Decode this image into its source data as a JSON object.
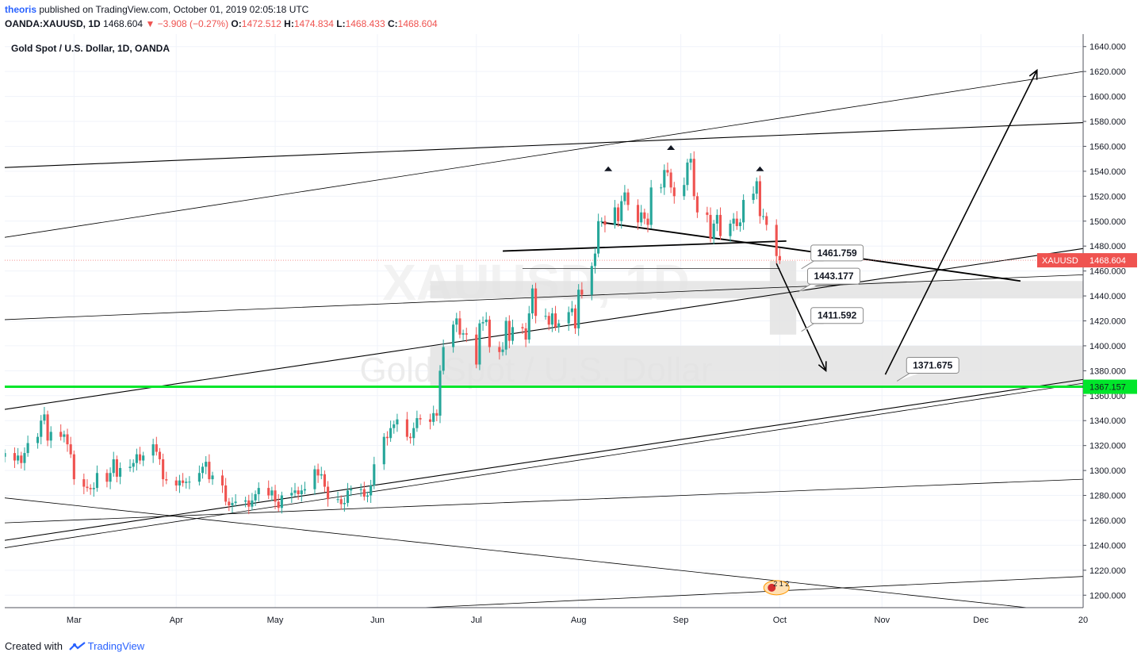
{
  "header": {
    "username": "theoris",
    "published_text": "published on TradingView.com, October 01, 2019 02:05:18 UTC"
  },
  "ohlc_line": {
    "symbol": "OANDA:XAUUSD, 1D",
    "last": "1468.604",
    "change": "−3.908 (−0.27%)",
    "o_label": "O:",
    "o": "1472.512",
    "h_label": "H:",
    "h": "1474.834",
    "l_label": "L:",
    "l": "1468.433",
    "c_label": "C:",
    "c": "1468.604"
  },
  "footer": {
    "created_with": "Created with",
    "brand": "TradingView"
  },
  "colors": {
    "up": "#26a69a",
    "down": "#ef5350",
    "support": "#00e62a",
    "band": "#e3e3e3",
    "price_tag": "#ef5350"
  },
  "chart_data": {
    "type": "candlestick",
    "title": "Gold Spot / U.S. Dollar, 1D, OANDA",
    "watermark_symbol": "XAUUSD, 1D",
    "watermark_name": "Gold Spot / U.S. Dollar",
    "yaxis": {
      "side": "right",
      "ylim": [
        1190,
        1650
      ],
      "ticks": [
        1640,
        1620,
        1600,
        1580,
        1560,
        1540,
        1520,
        1500,
        1480,
        1460,
        1440,
        1420,
        1400,
        1380,
        1360,
        1340,
        1320,
        1300,
        1280,
        1260,
        1240,
        1220,
        1200
      ],
      "tick_labels": [
        "1640.000",
        "1620.000",
        "1600.000",
        "1580.000",
        "1560.000",
        "1540.000",
        "1520.000",
        "1500.000",
        "1480.000",
        "1460.000",
        "1440.000",
        "1420.000",
        "1400.000",
        "1380.000",
        "1360.000",
        "1340.000",
        "1320.000",
        "1300.000",
        "1280.000",
        "1260.000",
        "1240.000",
        "1220.000",
        "1200.000"
      ]
    },
    "xaxis": {
      "range": [
        "2019-02-08",
        "2020-01-01"
      ],
      "ticks": [
        {
          "date": "2019-03-01",
          "label": "Mar"
        },
        {
          "date": "2019-04-01",
          "label": "Apr"
        },
        {
          "date": "2019-05-01",
          "label": "May"
        },
        {
          "date": "2019-06-01",
          "label": "Jun"
        },
        {
          "date": "2019-07-01",
          "label": "Jul"
        },
        {
          "date": "2019-08-01",
          "label": "Aug"
        },
        {
          "date": "2019-09-01",
          "label": "Sep"
        },
        {
          "date": "2019-10-01",
          "label": "Oct"
        },
        {
          "date": "2019-11-01",
          "label": "Nov"
        },
        {
          "date": "2019-12-01",
          "label": "Dec"
        },
        {
          "date": "2020-01-01",
          "label": "20"
        }
      ]
    },
    "grid": true,
    "price_close": [
      [
        "2019-02-08",
        1314
      ],
      [
        "2019-02-11",
        1308
      ],
      [
        "2019-02-12",
        1312
      ],
      [
        "2019-02-13",
        1306
      ],
      [
        "2019-02-14",
        1314
      ],
      [
        "2019-02-15",
        1322
      ],
      [
        "2019-02-18",
        1327
      ],
      [
        "2019-02-19",
        1340
      ],
      [
        "2019-02-20",
        1345
      ],
      [
        "2019-02-21",
        1324
      ],
      [
        "2019-02-22",
        1331
      ],
      [
        "2019-02-25",
        1327
      ],
      [
        "2019-02-26",
        1329
      ],
      [
        "2019-02-27",
        1321
      ],
      [
        "2019-02-28",
        1313
      ],
      [
        "2019-03-01",
        1293
      ],
      [
        "2019-03-04",
        1287
      ],
      [
        "2019-03-05",
        1286
      ],
      [
        "2019-03-06",
        1285
      ],
      [
        "2019-03-07",
        1286
      ],
      [
        "2019-03-08",
        1298
      ],
      [
        "2019-03-11",
        1291
      ],
      [
        "2019-03-12",
        1298
      ],
      [
        "2019-03-13",
        1309
      ],
      [
        "2019-03-14",
        1295
      ],
      [
        "2019-03-15",
        1302
      ],
      [
        "2019-03-18",
        1303
      ],
      [
        "2019-03-19",
        1306
      ],
      [
        "2019-03-20",
        1313
      ],
      [
        "2019-03-21",
        1308
      ],
      [
        "2019-03-22",
        1312
      ],
      [
        "2019-03-25",
        1321
      ],
      [
        "2019-03-26",
        1315
      ],
      [
        "2019-03-27",
        1309
      ],
      [
        "2019-03-28",
        1293
      ],
      [
        "2019-03-29",
        1292
      ],
      [
        "2019-04-01",
        1288
      ],
      [
        "2019-04-02",
        1292
      ],
      [
        "2019-04-03",
        1290
      ],
      [
        "2019-04-04",
        1291
      ],
      [
        "2019-04-05",
        1291
      ],
      [
        "2019-04-08",
        1298
      ],
      [
        "2019-04-09",
        1303
      ],
      [
        "2019-04-10",
        1307
      ],
      [
        "2019-04-11",
        1293
      ],
      [
        "2019-04-12",
        1296
      ],
      [
        "2019-04-15",
        1288
      ],
      [
        "2019-04-16",
        1275
      ],
      [
        "2019-04-17",
        1272
      ],
      [
        "2019-04-18",
        1274
      ],
      [
        "2019-04-19",
        1275
      ],
      [
        "2019-04-22",
        1276
      ],
      [
        "2019-04-23",
        1271
      ],
      [
        "2019-04-24",
        1276
      ],
      [
        "2019-04-25",
        1281
      ],
      [
        "2019-04-26",
        1286
      ],
      [
        "2019-04-29",
        1280
      ],
      [
        "2019-04-30",
        1284
      ],
      [
        "2019-05-01",
        1275
      ],
      [
        "2019-05-02",
        1270
      ],
      [
        "2019-05-03",
        1280
      ],
      [
        "2019-05-06",
        1282
      ],
      [
        "2019-05-07",
        1284
      ],
      [
        "2019-05-08",
        1281
      ],
      [
        "2019-05-09",
        1284
      ],
      [
        "2019-05-10",
        1285
      ],
      [
        "2019-05-13",
        1301
      ],
      [
        "2019-05-14",
        1296
      ],
      [
        "2019-05-15",
        1297
      ],
      [
        "2019-05-16",
        1287
      ],
      [
        "2019-05-17",
        1277
      ],
      [
        "2019-05-20",
        1277
      ],
      [
        "2019-05-21",
        1273
      ],
      [
        "2019-05-22",
        1274
      ],
      [
        "2019-05-23",
        1284
      ],
      [
        "2019-05-24",
        1285
      ],
      [
        "2019-05-27",
        1285
      ],
      [
        "2019-05-28",
        1279
      ],
      [
        "2019-05-29",
        1280
      ],
      [
        "2019-05-30",
        1288
      ],
      [
        "2019-05-31",
        1305
      ],
      [
        "2019-06-03",
        1327
      ],
      [
        "2019-06-04",
        1326
      ],
      [
        "2019-06-05",
        1334
      ],
      [
        "2019-06-06",
        1337
      ],
      [
        "2019-06-07",
        1341
      ],
      [
        "2019-06-10",
        1327
      ],
      [
        "2019-06-11",
        1326
      ],
      [
        "2019-06-12",
        1334
      ],
      [
        "2019-06-13",
        1342
      ],
      [
        "2019-06-14",
        1341
      ],
      [
        "2019-06-17",
        1339
      ],
      [
        "2019-06-18",
        1346
      ],
      [
        "2019-06-19",
        1344
      ],
      [
        "2019-06-20",
        1380
      ],
      [
        "2019-06-21",
        1399
      ],
      [
        "2019-06-24",
        1417
      ],
      [
        "2019-06-25",
        1422
      ],
      [
        "2019-06-26",
        1409
      ],
      [
        "2019-06-27",
        1410
      ],
      [
        "2019-06-28",
        1409
      ],
      [
        "2019-07-01",
        1385
      ],
      [
        "2019-07-02",
        1418
      ],
      [
        "2019-07-03",
        1419
      ],
      [
        "2019-07-04",
        1421
      ],
      [
        "2019-07-05",
        1399
      ],
      [
        "2019-07-08",
        1395
      ],
      [
        "2019-07-09",
        1397
      ],
      [
        "2019-07-10",
        1420
      ],
      [
        "2019-07-11",
        1404
      ],
      [
        "2019-07-12",
        1415
      ],
      [
        "2019-07-15",
        1414
      ],
      [
        "2019-07-16",
        1405
      ],
      [
        "2019-07-17",
        1426
      ],
      [
        "2019-07-18",
        1446
      ],
      [
        "2019-07-19",
        1424
      ],
      [
        "2019-07-22",
        1424
      ],
      [
        "2019-07-23",
        1417
      ],
      [
        "2019-07-24",
        1426
      ],
      [
        "2019-07-25",
        1415
      ],
      [
        "2019-07-26",
        1418
      ],
      [
        "2019-07-29",
        1427
      ],
      [
        "2019-07-30",
        1430
      ],
      [
        "2019-07-31",
        1414
      ],
      [
        "2019-08-01",
        1445
      ],
      [
        "2019-08-02",
        1441
      ],
      [
        "2019-08-05",
        1464
      ],
      [
        "2019-08-06",
        1474
      ],
      [
        "2019-08-07",
        1500
      ],
      [
        "2019-08-08",
        1500
      ],
      [
        "2019-08-09",
        1497
      ],
      [
        "2019-08-12",
        1511
      ],
      [
        "2019-08-13",
        1500
      ],
      [
        "2019-08-14",
        1516
      ],
      [
        "2019-08-15",
        1523
      ],
      [
        "2019-08-16",
        1513
      ],
      [
        "2019-08-19",
        1499
      ],
      [
        "2019-08-20",
        1507
      ],
      [
        "2019-08-21",
        1502
      ],
      [
        "2019-08-22",
        1497
      ],
      [
        "2019-08-23",
        1527
      ],
      [
        "2019-08-26",
        1527
      ],
      [
        "2019-08-27",
        1541
      ],
      [
        "2019-08-28",
        1539
      ],
      [
        "2019-08-29",
        1527
      ],
      [
        "2019-08-30",
        1520
      ],
      [
        "2019-09-02",
        1529
      ],
      [
        "2019-09-03",
        1547
      ],
      [
        "2019-09-04",
        1550
      ],
      [
        "2019-09-05",
        1520
      ],
      [
        "2019-09-06",
        1507
      ],
      [
        "2019-09-09",
        1505
      ],
      [
        "2019-09-10",
        1486
      ],
      [
        "2019-09-11",
        1498
      ],
      [
        "2019-09-12",
        1505
      ],
      [
        "2019-09-13",
        1488
      ],
      [
        "2019-09-16",
        1498
      ],
      [
        "2019-09-17",
        1502
      ],
      [
        "2019-09-18",
        1496
      ],
      [
        "2019-09-19",
        1499
      ],
      [
        "2019-09-20",
        1517
      ],
      [
        "2019-09-23",
        1522
      ],
      [
        "2019-09-24",
        1532
      ],
      [
        "2019-09-25",
        1504
      ],
      [
        "2019-09-26",
        1504
      ],
      [
        "2019-09-27",
        1497
      ],
      [
        "2019-09-30",
        1472
      ],
      [
        "2019-10-01",
        1468.604
      ]
    ],
    "last_price": {
      "value": 1468.604,
      "label": "XAUUSD",
      "text": "1468.604"
    },
    "support_line": {
      "value": 1367.157,
      "text": "1367.157"
    },
    "zones": [
      {
        "from": "2019-06-17",
        "to": "2020-01-01",
        "y1": 1438,
        "y2": 1452
      },
      {
        "from": "2019-06-17",
        "to": "2020-01-01",
        "y1": 1368,
        "y2": 1400
      },
      {
        "from": "2019-09-28",
        "to": "2019-10-06",
        "y1": 1409,
        "y2": 1468
      }
    ],
    "markers": [
      {
        "date": "2019-08-10",
        "value": 1542
      },
      {
        "date": "2019-08-29",
        "value": 1559
      },
      {
        "date": "2019-09-25",
        "value": 1542
      }
    ],
    "callouts": [
      {
        "text": "1461.759",
        "date": "2019-10-09",
        "value": 1461.759
      },
      {
        "text": "1443.177",
        "date": "2019-10-08",
        "value": 1443.177
      },
      {
        "text": "1411.592",
        "date": "2019-10-09",
        "value": 1411.592
      },
      {
        "text": "1371.675",
        "date": "2019-11-07",
        "value": 1371.675
      }
    ],
    "trendlines": [
      {
        "from": [
          "2019-02-08",
          1543
        ],
        "to": [
          "2020-01-01",
          1579
        ],
        "weight": "medium"
      },
      {
        "from": [
          "2019-02-08",
          1487
        ],
        "to": [
          "2020-01-01",
          1620
        ],
        "weight": "thin"
      },
      {
        "from": [
          "2019-02-08",
          1421
        ],
        "to": [
          "2020-01-01",
          1457
        ],
        "weight": "thin"
      },
      {
        "from": [
          "2019-02-08",
          1349
        ],
        "to": [
          "2020-01-01",
          1478
        ],
        "weight": "medium"
      },
      {
        "from": [
          "2019-02-08",
          1244
        ],
        "to": [
          "2020-01-01",
          1373
        ],
        "weight": "medium"
      },
      {
        "from": [
          "2019-02-08",
          1238
        ],
        "to": [
          "2020-01-01",
          1370
        ],
        "weight": "thin"
      },
      {
        "from": [
          "2019-02-08",
          1258
        ],
        "to": [
          "2020-01-01",
          1293
        ],
        "weight": "thin"
      },
      {
        "from": [
          "2019-02-08",
          1278
        ],
        "to": [
          "2019-12-15",
          1190
        ],
        "weight": "thin"
      },
      {
        "from": [
          "2019-06-15",
          1190
        ],
        "to": [
          "2020-01-01",
          1215
        ],
        "weight": "thin"
      },
      {
        "from": [
          "2019-07-15",
          1462
        ],
        "to": [
          "2019-10-01",
          1462
        ],
        "weight": "hair"
      },
      {
        "from": [
          "2019-07-09",
          1476
        ],
        "to": [
          "2019-10-03",
          1484
        ],
        "weight": "bold"
      },
      {
        "from": [
          "2019-08-08",
          1499
        ],
        "to": [
          "2019-12-13",
          1452
        ],
        "weight": "bold"
      }
    ],
    "arrows": [
      {
        "from": [
          "2019-09-30",
          1466
        ],
        "to": [
          "2019-10-15",
          1380
        ]
      },
      {
        "from": [
          "2019-11-02",
          1377
        ],
        "to": [
          "2019-12-18",
          1621
        ]
      }
    ],
    "flag": {
      "date": "2019-09-30",
      "value": 1206,
      "text": "2 1 2"
    }
  }
}
